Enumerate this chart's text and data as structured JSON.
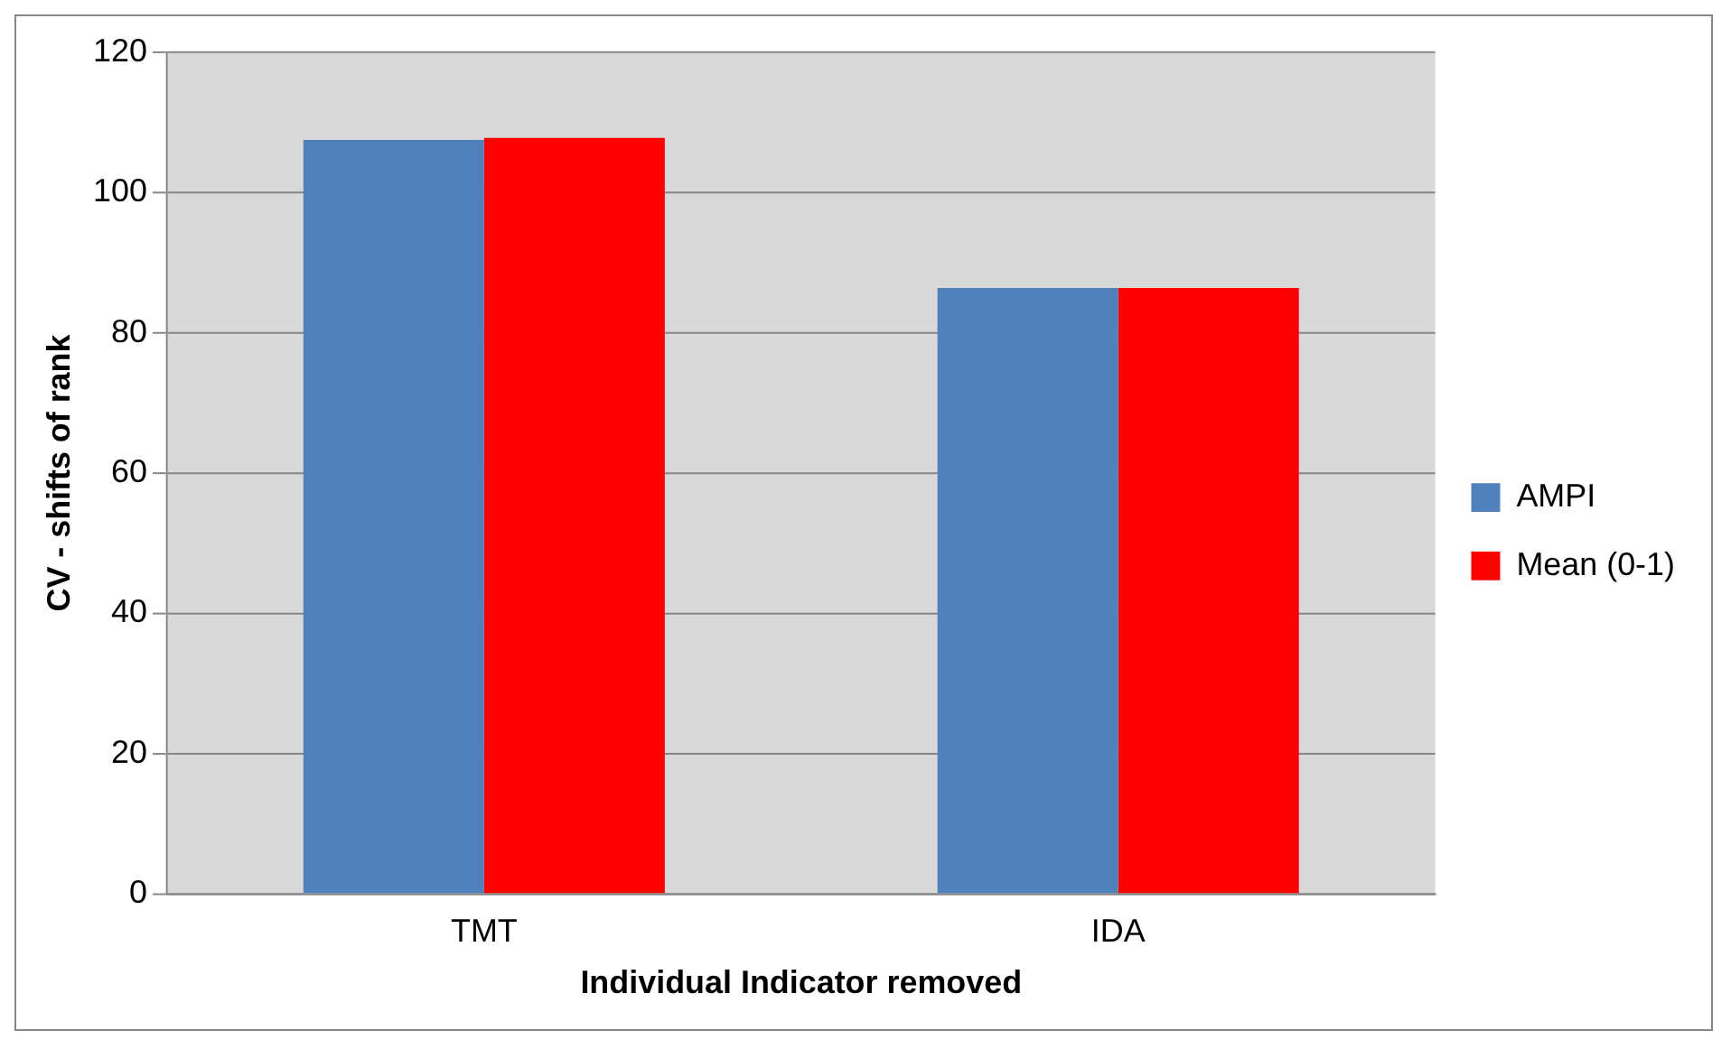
{
  "chart_data": {
    "type": "bar",
    "xlabel": "Individual Indicator removed",
    "ylabel": "CV - shifts of rank",
    "categories": [
      "TMT",
      "IDA"
    ],
    "series": [
      {
        "name": "AMPI",
        "color": "#4f81bd",
        "values": [
          107.5,
          86.4
        ]
      },
      {
        "name": "Mean (0-1)",
        "color": "#ff0000",
        "values": [
          107.8,
          86.4
        ]
      }
    ],
    "ylim": [
      0,
      120
    ],
    "yticks": [
      0,
      20,
      40,
      60,
      80,
      100,
      120
    ],
    "grid": "y",
    "legend": "right"
  }
}
